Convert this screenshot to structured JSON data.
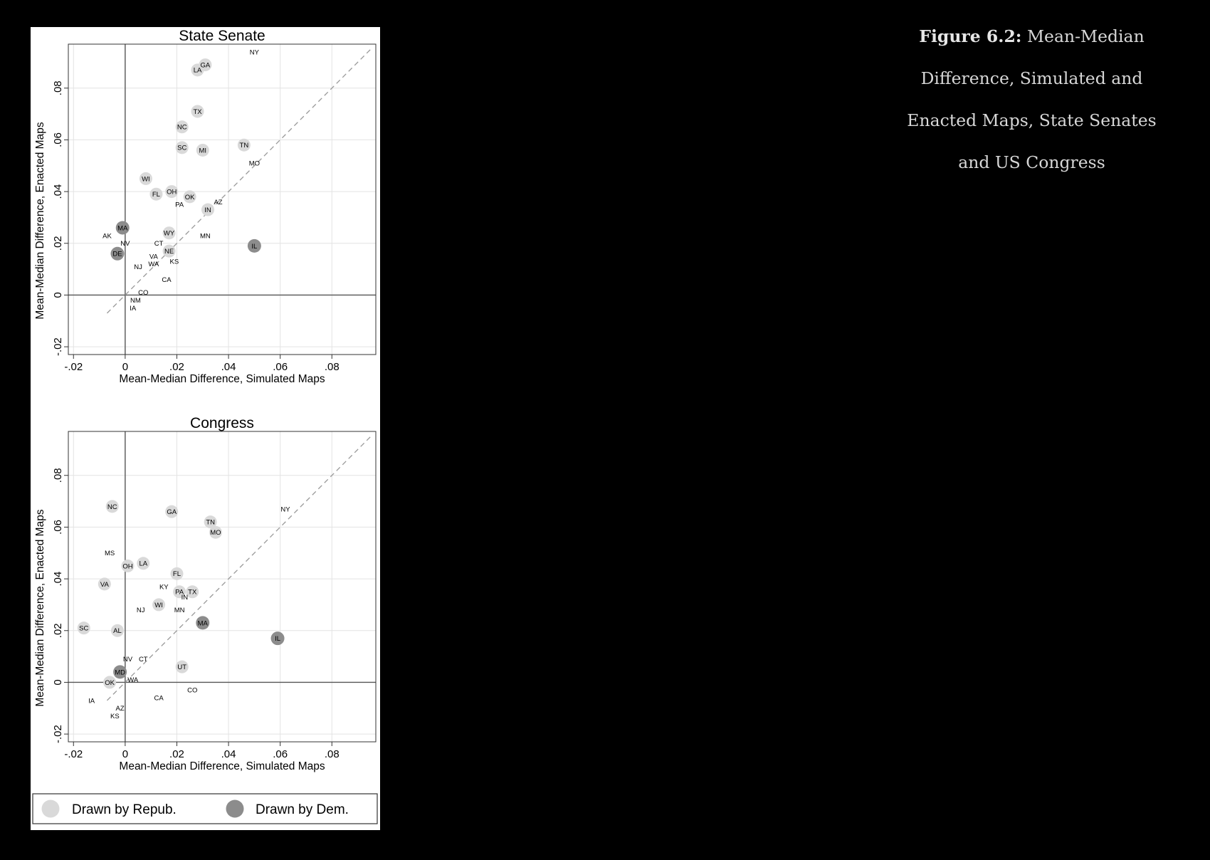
{
  "caption": {
    "label": "Figure 6.2:",
    "text": "Mean-Median Difference, Simulated and Enacted Maps, State Senates and US Congress"
  },
  "colors": {
    "repub": "#d9d9d9",
    "dem": "#8c8c8c",
    "background": "#000000",
    "panel": "#ffffff"
  },
  "legend": [
    {
      "label": "Drawn by Repub.",
      "color": "#d9d9d9"
    },
    {
      "label": "Drawn by Dem.",
      "color": "#8c8c8c"
    }
  ],
  "chart_data": [
    {
      "type": "scatter",
      "title": "State Senate",
      "xlabel": "Mean-Median Difference, Simulated Maps",
      "ylabel": "Mean-Median Difference, Enacted Maps",
      "xlim": [
        -0.022,
        0.097
      ],
      "ylim": [
        -0.023,
        0.097
      ],
      "xticks": [
        -0.02,
        0,
        0.02,
        0.04,
        0.06,
        0.08
      ],
      "yticks": [
        -0.02,
        0,
        0.02,
        0.04,
        0.06,
        0.08
      ],
      "xtick_labels": [
        "-.02",
        "0",
        ".02",
        ".04",
        ".06",
        ".08"
      ],
      "ytick_labels": [
        "-.02",
        "0",
        ".02",
        ".04",
        ".06",
        ".08"
      ],
      "grid": true,
      "diagonal": [
        -0.007,
        0.095
      ],
      "points": [
        {
          "label": "NY",
          "x": 0.05,
          "y": 0.094,
          "group": "none"
        },
        {
          "label": "LA",
          "x": 0.028,
          "y": 0.087,
          "group": "repub"
        },
        {
          "label": "GA",
          "x": 0.031,
          "y": 0.089,
          "group": "repub"
        },
        {
          "label": "TX",
          "x": 0.028,
          "y": 0.071,
          "group": "repub"
        },
        {
          "label": "NC",
          "x": 0.022,
          "y": 0.065,
          "group": "repub"
        },
        {
          "label": "SC",
          "x": 0.022,
          "y": 0.057,
          "group": "repub"
        },
        {
          "label": "MI",
          "x": 0.03,
          "y": 0.056,
          "group": "repub"
        },
        {
          "label": "TN",
          "x": 0.046,
          "y": 0.058,
          "group": "repub"
        },
        {
          "label": "MO",
          "x": 0.05,
          "y": 0.051,
          "group": "none"
        },
        {
          "label": "WI",
          "x": 0.008,
          "y": 0.045,
          "group": "repub"
        },
        {
          "label": "FL",
          "x": 0.012,
          "y": 0.039,
          "group": "repub"
        },
        {
          "label": "OH",
          "x": 0.018,
          "y": 0.04,
          "group": "repub"
        },
        {
          "label": "OK",
          "x": 0.025,
          "y": 0.038,
          "group": "repub"
        },
        {
          "label": "PA",
          "x": 0.021,
          "y": 0.035,
          "group": "none"
        },
        {
          "label": "AZ",
          "x": 0.036,
          "y": 0.036,
          "group": "none"
        },
        {
          "label": "IN",
          "x": 0.032,
          "y": 0.033,
          "group": "repub"
        },
        {
          "label": "MA",
          "x": -0.001,
          "y": 0.026,
          "group": "dem"
        },
        {
          "label": "AK",
          "x": -0.007,
          "y": 0.023,
          "group": "none"
        },
        {
          "label": "WY",
          "x": 0.017,
          "y": 0.024,
          "group": "repub"
        },
        {
          "label": "MN",
          "x": 0.031,
          "y": 0.023,
          "group": "none"
        },
        {
          "label": "IL",
          "x": 0.05,
          "y": 0.019,
          "group": "dem"
        },
        {
          "label": "NV",
          "x": 0.0,
          "y": 0.02,
          "group": "none"
        },
        {
          "label": "CT",
          "x": 0.013,
          "y": 0.02,
          "group": "none"
        },
        {
          "label": "NE",
          "x": 0.017,
          "y": 0.017,
          "group": "repub"
        },
        {
          "label": "DE",
          "x": -0.003,
          "y": 0.016,
          "group": "dem"
        },
        {
          "label": "VA",
          "x": 0.011,
          "y": 0.015,
          "group": "none"
        },
        {
          "label": "KS",
          "x": 0.019,
          "y": 0.013,
          "group": "none"
        },
        {
          "label": "NJ",
          "x": 0.005,
          "y": 0.011,
          "group": "none"
        },
        {
          "label": "WA",
          "x": 0.011,
          "y": 0.012,
          "group": "none"
        },
        {
          "label": "CA",
          "x": 0.016,
          "y": 0.006,
          "group": "none"
        },
        {
          "label": "CO",
          "x": 0.007,
          "y": 0.001,
          "group": "none"
        },
        {
          "label": "NM",
          "x": 0.004,
          "y": -0.002,
          "group": "none"
        },
        {
          "label": "IA",
          "x": 0.003,
          "y": -0.005,
          "group": "none"
        }
      ]
    },
    {
      "type": "scatter",
      "title": "Congress",
      "xlabel": "Mean-Median Difference, Simulated Maps",
      "ylabel": "Mean-Median Difference, Enacted Maps",
      "xlim": [
        -0.022,
        0.097
      ],
      "ylim": [
        -0.023,
        0.097
      ],
      "xticks": [
        -0.02,
        0,
        0.02,
        0.04,
        0.06,
        0.08
      ],
      "yticks": [
        -0.02,
        0,
        0.02,
        0.04,
        0.06,
        0.08
      ],
      "xtick_labels": [
        "-.02",
        "0",
        ".02",
        ".04",
        ".06",
        ".08"
      ],
      "ytick_labels": [
        "-.02",
        "0",
        ".02",
        ".04",
        ".06",
        ".08"
      ],
      "grid": true,
      "diagonal": [
        -0.007,
        0.095
      ],
      "points": [
        {
          "label": "NC",
          "x": -0.005,
          "y": 0.068,
          "group": "repub"
        },
        {
          "label": "GA",
          "x": 0.018,
          "y": 0.066,
          "group": "repub"
        },
        {
          "label": "NY",
          "x": 0.062,
          "y": 0.067,
          "group": "none"
        },
        {
          "label": "TN",
          "x": 0.033,
          "y": 0.062,
          "group": "repub"
        },
        {
          "label": "MO",
          "x": 0.035,
          "y": 0.058,
          "group": "repub"
        },
        {
          "label": "MS",
          "x": -0.006,
          "y": 0.05,
          "group": "none"
        },
        {
          "label": "OH",
          "x": 0.001,
          "y": 0.045,
          "group": "repub"
        },
        {
          "label": "LA",
          "x": 0.007,
          "y": 0.046,
          "group": "repub"
        },
        {
          "label": "FL",
          "x": 0.02,
          "y": 0.042,
          "group": "repub"
        },
        {
          "label": "VA",
          "x": -0.008,
          "y": 0.038,
          "group": "repub"
        },
        {
          "label": "KY",
          "x": 0.015,
          "y": 0.037,
          "group": "none"
        },
        {
          "label": "PA",
          "x": 0.021,
          "y": 0.035,
          "group": "repub"
        },
        {
          "label": "TX",
          "x": 0.026,
          "y": 0.035,
          "group": "repub"
        },
        {
          "label": "IN",
          "x": 0.023,
          "y": 0.033,
          "group": "none"
        },
        {
          "label": "WI",
          "x": 0.013,
          "y": 0.03,
          "group": "repub"
        },
        {
          "label": "NJ",
          "x": 0.006,
          "y": 0.028,
          "group": "none"
        },
        {
          "label": "MN",
          "x": 0.021,
          "y": 0.028,
          "group": "none"
        },
        {
          "label": "MA",
          "x": 0.03,
          "y": 0.023,
          "group": "dem"
        },
        {
          "label": "SC",
          "x": -0.016,
          "y": 0.021,
          "group": "repub"
        },
        {
          "label": "AL",
          "x": -0.003,
          "y": 0.02,
          "group": "repub"
        },
        {
          "label": "IL",
          "x": 0.059,
          "y": 0.017,
          "group": "dem"
        },
        {
          "label": "NV",
          "x": 0.001,
          "y": 0.009,
          "group": "none"
        },
        {
          "label": "CT",
          "x": 0.007,
          "y": 0.009,
          "group": "none"
        },
        {
          "label": "UT",
          "x": 0.022,
          "y": 0.006,
          "group": "repub"
        },
        {
          "label": "MD",
          "x": -0.002,
          "y": 0.004,
          "group": "dem"
        },
        {
          "label": "OK",
          "x": -0.006,
          "y": 0.0,
          "group": "repub"
        },
        {
          "label": "WA",
          "x": 0.003,
          "y": 0.001,
          "group": "none"
        },
        {
          "label": "CO",
          "x": 0.026,
          "y": -0.003,
          "group": "none"
        },
        {
          "label": "IA",
          "x": -0.013,
          "y": -0.007,
          "group": "none"
        },
        {
          "label": "CA",
          "x": 0.013,
          "y": -0.006,
          "group": "none"
        },
        {
          "label": "AZ",
          "x": -0.002,
          "y": -0.01,
          "group": "none"
        },
        {
          "label": "KS",
          "x": -0.004,
          "y": -0.013,
          "group": "none"
        }
      ]
    }
  ]
}
